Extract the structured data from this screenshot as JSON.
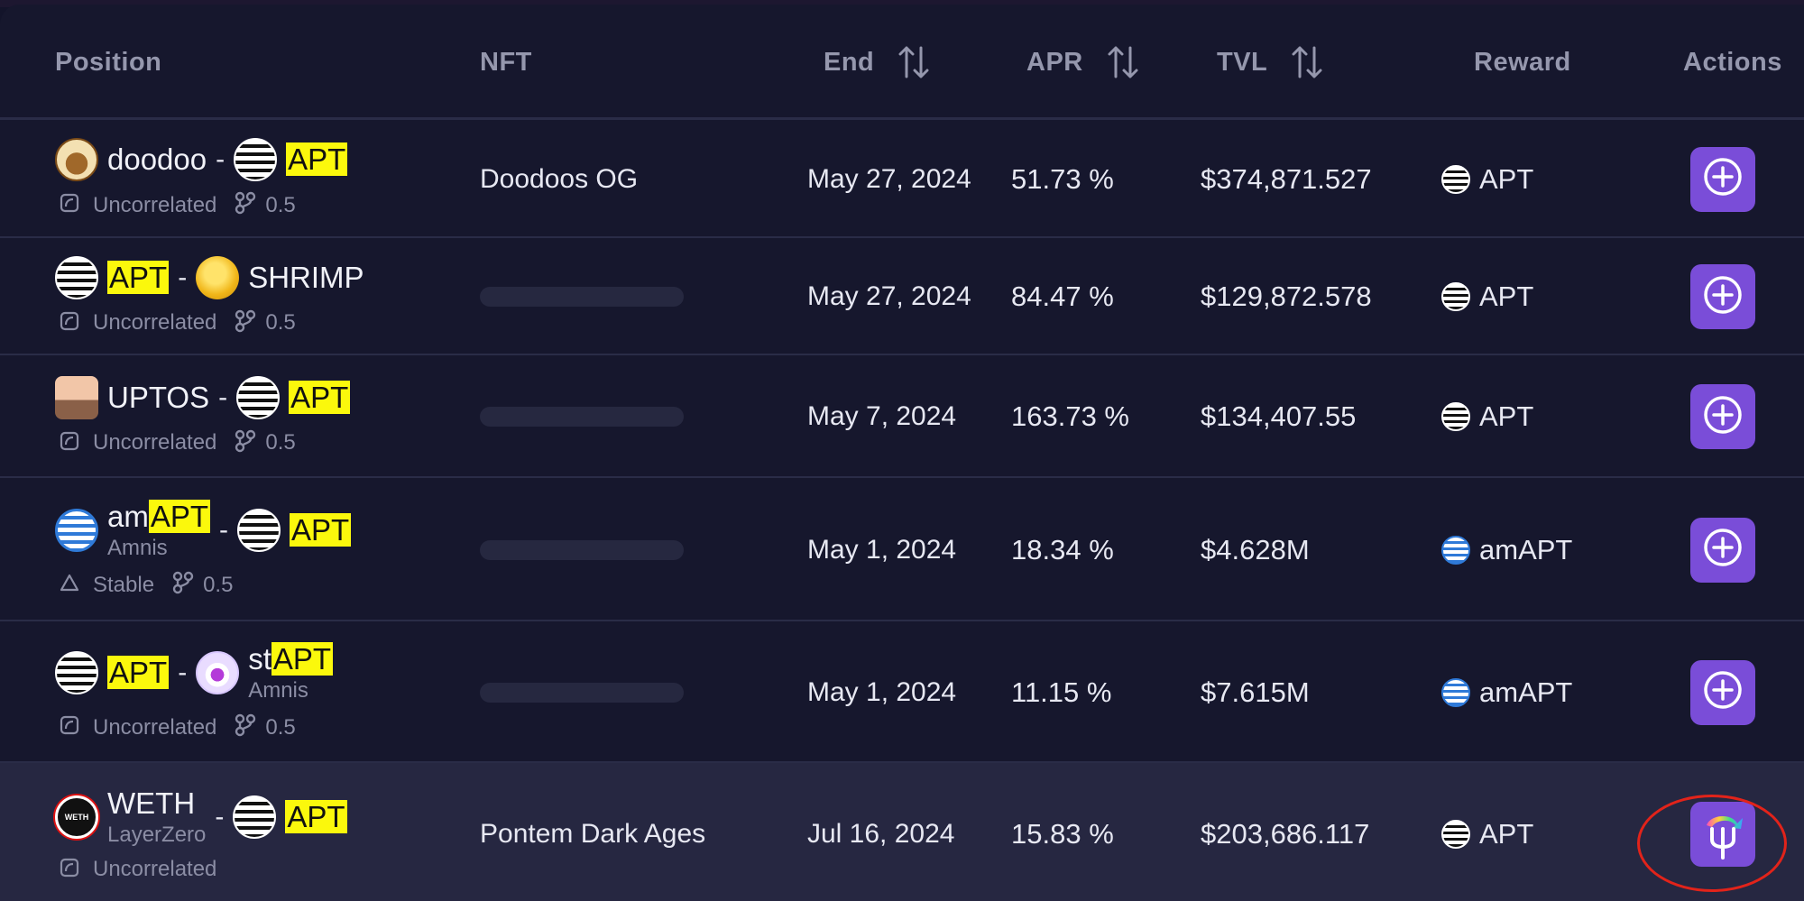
{
  "header": {
    "position": "Position",
    "nft": "NFT",
    "end": "End",
    "apr": "APR",
    "tvl": "TVL",
    "reward": "Reward",
    "actions": "Actions"
  },
  "rows": [
    {
      "token_a": {
        "name": "doodoo",
        "highlight": "",
        "sub": "",
        "icon": "doodoo-coin-icon"
      },
      "token_b": {
        "name": "",
        "highlight": "APT",
        "sub": "",
        "icon": "apt-coin-icon"
      },
      "type": "Uncorrelated",
      "weight": "0.5",
      "nft": "Doodoos OG",
      "end": "May 27, 2024",
      "apr": "51.73 %",
      "tvl": "$374,871.527",
      "reward": "APT",
      "reward_icon": "apt-coin-icon",
      "action_icon": "plus-circle-icon"
    },
    {
      "token_a": {
        "name": "",
        "highlight": "APT",
        "sub": "",
        "icon": "apt-coin-icon"
      },
      "token_b": {
        "name": "SHRIMP",
        "highlight": "",
        "sub": "",
        "icon": "shrimp-coin-icon"
      },
      "type": "Uncorrelated",
      "weight": "0.5",
      "nft": "",
      "end": "May 27, 2024",
      "apr": "84.47 %",
      "tvl": "$129,872.578",
      "reward": "APT",
      "reward_icon": "apt-coin-icon",
      "action_icon": "plus-circle-icon"
    },
    {
      "token_a": {
        "name": "UPTOS",
        "highlight": "",
        "sub": "",
        "icon": "uptos-coin-icon"
      },
      "token_b": {
        "name": "",
        "highlight": "APT",
        "sub": "",
        "icon": "apt-coin-icon"
      },
      "type": "Uncorrelated",
      "weight": "0.5",
      "nft": "",
      "end": "May 7, 2024",
      "apr": "163.73 %",
      "tvl": "$134,407.55",
      "reward": "APT",
      "reward_icon": "apt-coin-icon",
      "action_icon": "plus-circle-icon"
    },
    {
      "token_a": {
        "name": "am",
        "highlight": "APT",
        "sub": "Amnis",
        "icon": "amapt-coin-icon"
      },
      "token_b": {
        "name": "",
        "highlight": "APT",
        "sub": "",
        "icon": "apt-coin-icon"
      },
      "type": "Stable",
      "weight": "0.5",
      "nft": "",
      "end": "May 1, 2024",
      "apr": "18.34 %",
      "tvl": "$4.628M",
      "reward": "amAPT",
      "reward_icon": "amapt-coin-icon",
      "action_icon": "plus-circle-icon"
    },
    {
      "token_a": {
        "name": "",
        "highlight": "APT",
        "sub": "",
        "icon": "apt-coin-icon"
      },
      "token_b": {
        "name": "st",
        "highlight": "APT",
        "sub": "Amnis",
        "icon": "stapt-coin-icon"
      },
      "type": "Uncorrelated",
      "weight": "0.5",
      "nft": "",
      "end": "May 1, 2024",
      "apr": "11.15 %",
      "tvl": "$7.615M",
      "reward": "amAPT",
      "reward_icon": "amapt-coin-icon",
      "action_icon": "plus-circle-icon"
    },
    {
      "token_a": {
        "name": "WETH",
        "highlight": "",
        "sub": "LayerZero",
        "icon": "weth-coin-icon"
      },
      "token_b": {
        "name": "",
        "highlight": "APT",
        "sub": "",
        "icon": "apt-coin-icon"
      },
      "type": "Uncorrelated",
      "weight": "",
      "nft": "Pontem Dark Ages",
      "end": "Jul 16, 2024",
      "apr": "15.83 %",
      "tvl": "$203,686.117",
      "reward": "APT",
      "reward_icon": "apt-coin-icon",
      "action_icon": "pontem-trident-icon"
    }
  ],
  "pair_separator": "-",
  "weth_logo_text": "WETH",
  "colors": {
    "background": "#16172d",
    "highlight": "#fbf80c",
    "action_button": "#7a4dd8",
    "annotation_ring": "#e2231a"
  }
}
